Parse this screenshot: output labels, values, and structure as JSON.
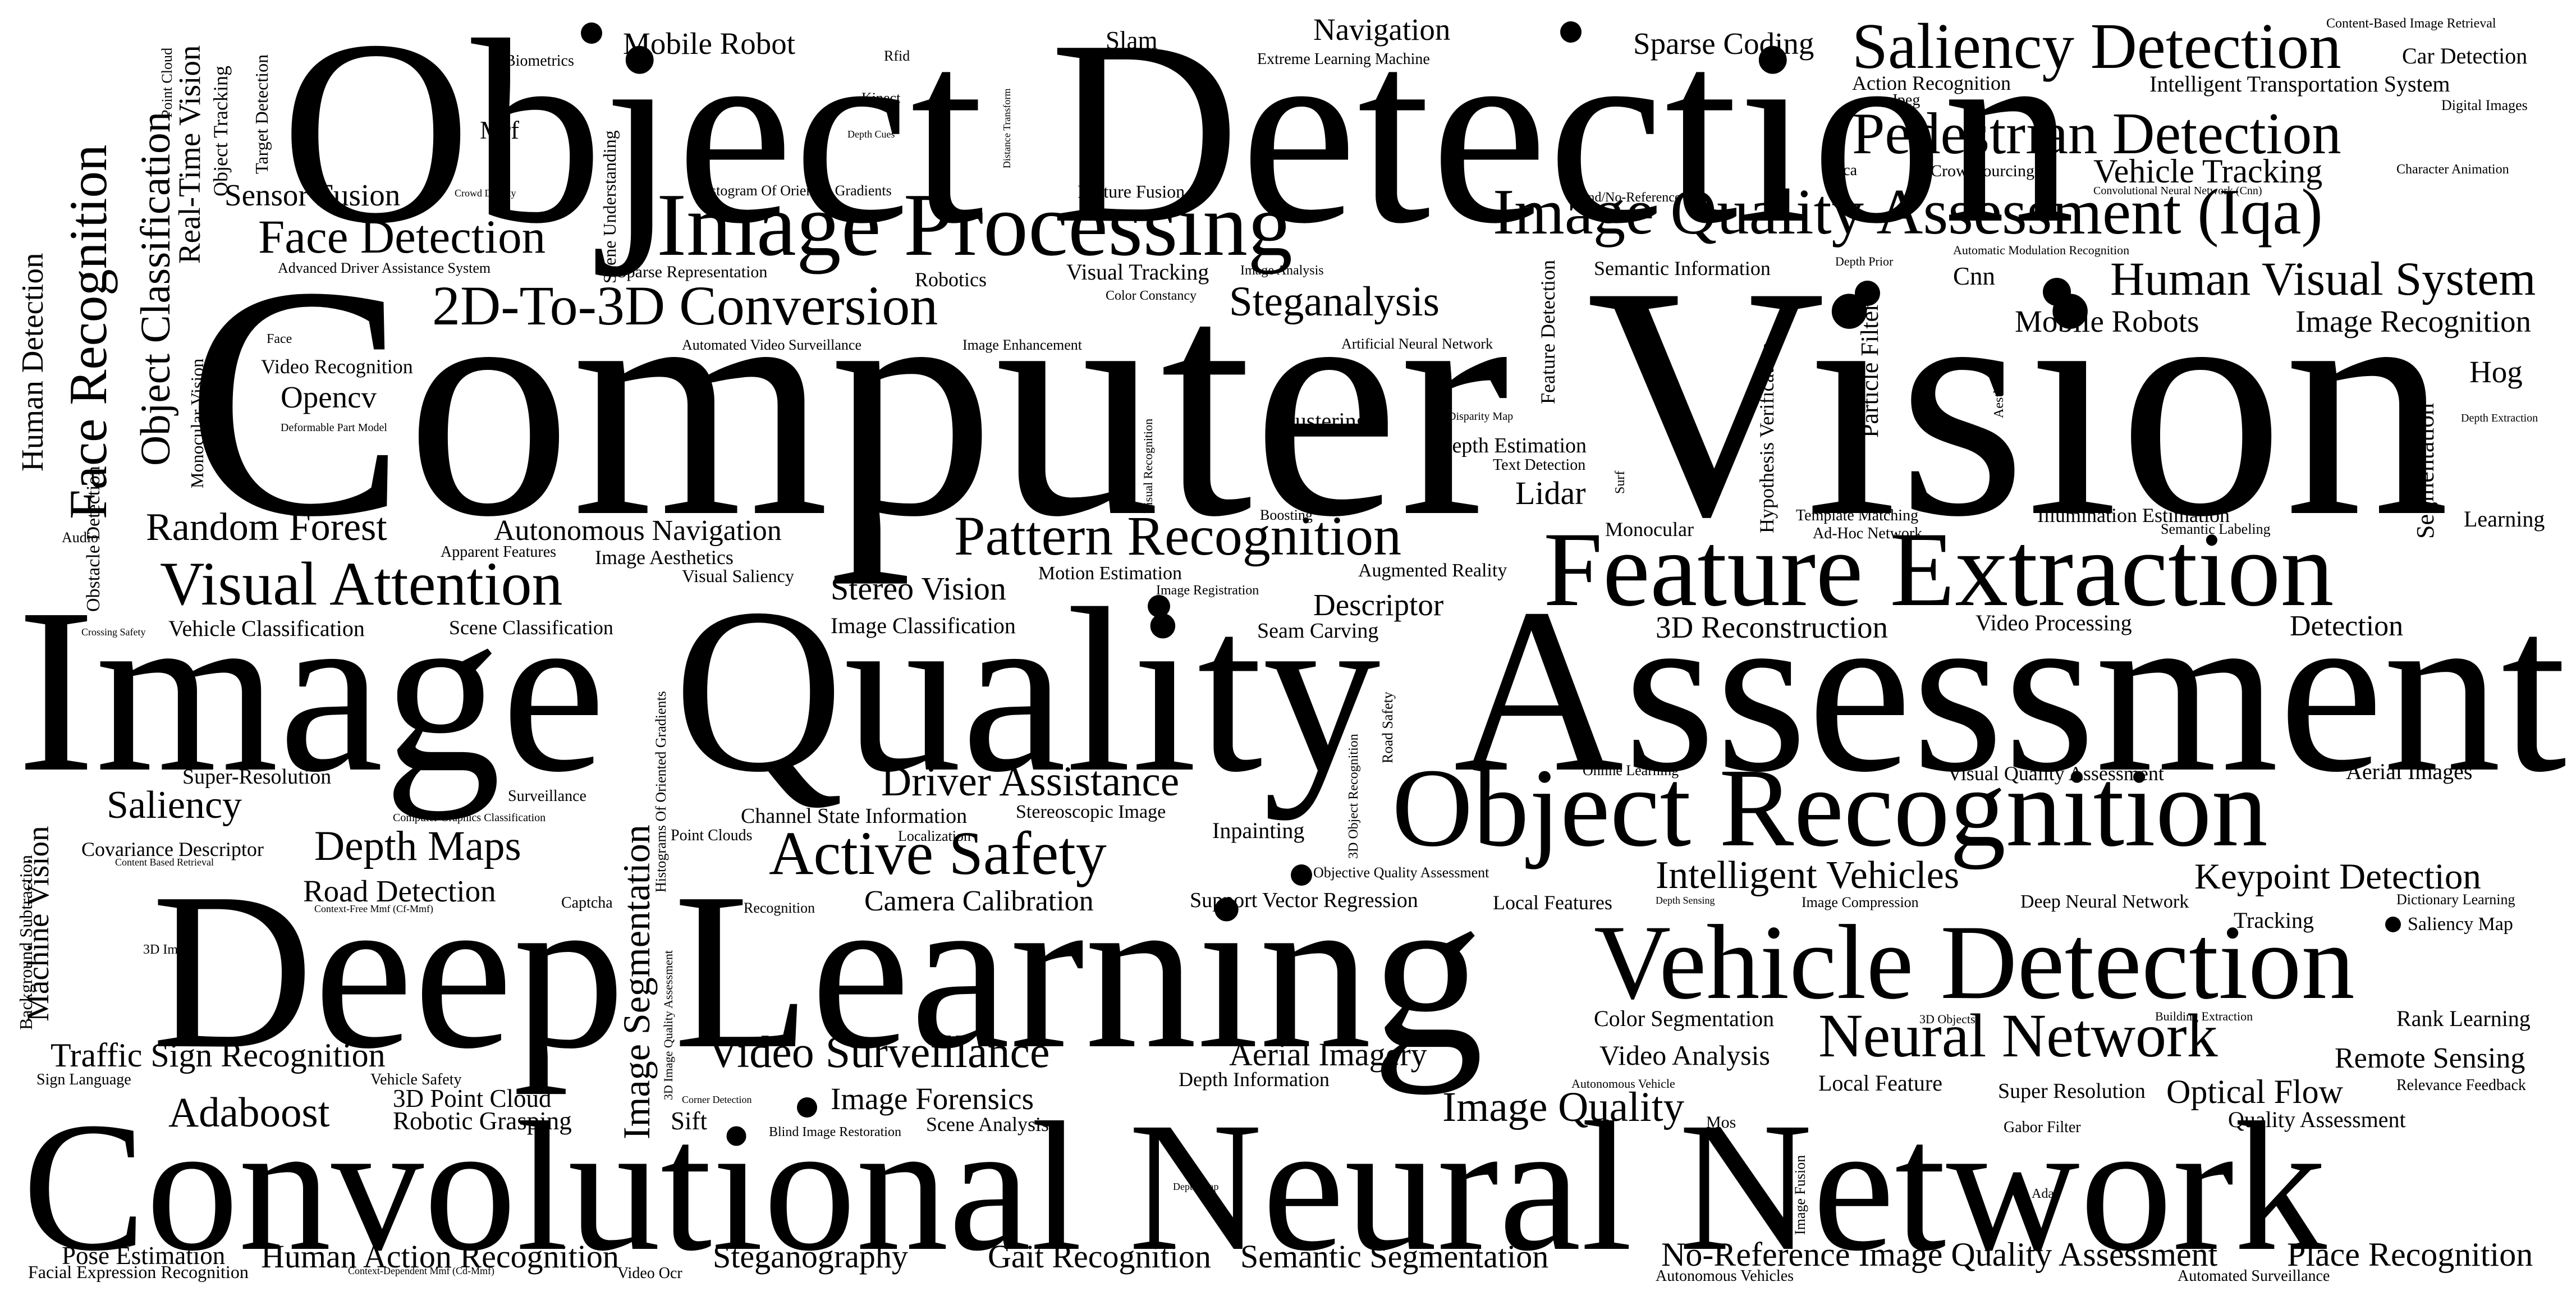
{
  "cloud": {
    "words": [
      "Computer Vision",
      "Object Detection",
      "Image",
      "Quality",
      "Assessment",
      "Deep",
      "Learning",
      "Convolutional Neural Network",
      "Feature Extraction",
      "Object Recognition",
      "Vehicle Detection",
      "Image Processing",
      "Image Quality Assessment (Iqa)",
      "Saliency Detection",
      "Pedestrian Detection",
      "Human Visual System",
      "Visual Attention",
      "Active Safety",
      "Neural Network",
      "Pattern Recognition",
      "2D-To-3D Conversion",
      "Face Recognition",
      "Object Classification",
      "Face Detection",
      "Random Forest",
      "Driver Assistance",
      "Depth Maps",
      "Video Surveillance",
      "Traffic Sign Recognition",
      "Adaboost",
      "Image Quality",
      "Mobile Robot",
      "Navigation",
      "Sparse Coding",
      "Steganalysis",
      "Intelligent Vehicles",
      "Keypoint Detection",
      "Optical Flow",
      "Saliency",
      "Stereo Vision",
      "Autonomous Navigation",
      "3D Reconstruction",
      "Mobile Robots",
      "Image Recognition",
      "Vehicle Tracking",
      "Place Recognition",
      "No-Reference Image Quality Assessment",
      "Semantic Segmentation",
      "Gait Recognition",
      "Steganography",
      "Human Action Recognition",
      "Remote Sensing",
      "Image Forensics",
      "Aerial Imagery",
      "Video Analysis",
      "Camera Calibration",
      "Road Detection",
      "Sensor Fusion",
      "Opencv",
      "Descriptor",
      "Detection",
      "Hog",
      "Lidar",
      "Video Processing",
      "Image Segmentation",
      "Machine Vision",
      "Human Detection",
      "Real-Time Vision",
      "Pose Estimation",
      "Rank Learning",
      "Tracking",
      "Color Segmentation",
      "Local Feature",
      "Quality Assessment",
      "Super Resolution",
      "Robotic Grasping",
      "3D Point Cloud",
      "Sift",
      "Mrf",
      "Cnn",
      "Slam",
      "Biometrics",
      "Car Detection",
      "Intelligent Transportation System",
      "Action Recognition",
      "Content-Based Image Retrieval",
      "Digital Images",
      "Character Animation",
      "Jpeg",
      "Kpca",
      "Crowdsourcing",
      "Convolutional Neural Network (Cnn)",
      "Automatic Modulation Recognition",
      "Semantic Information",
      "Depth Prior",
      "Robotics",
      "Visual Tracking",
      "Image Analysis",
      "Color Constancy",
      "Image Enhancement",
      "Automated Video Surveillance",
      "Artificial Neural Network",
      "Advanced Driver Assistance System",
      "Sparse Representation",
      "Histogram Of Oriented Gradients",
      "Feature Fusion",
      "Extreme Learning Machine",
      "Rfid",
      "Kinect",
      "Depth Cues",
      "Crowd Density",
      "Blind/No-Reference (Nr)",
      "Face",
      "Video Recognition",
      "Deformable Part Model",
      "Clustering",
      "Disparity Map",
      "Depth Estimation",
      "Text Detection",
      "Template Matching",
      "Ad-Hoc Network",
      "Illumination Estimation",
      "Semantic Labeling",
      "Learning",
      "Depth Extraction",
      "Monocular",
      "Augmented Reality",
      "Motion Estimation",
      "Image Registration",
      "Apparent Features",
      "Image Aesthetics",
      "Visual Saliency",
      "Audio",
      "Crossing Safety",
      "Vehicle Classification",
      "Scene Classification",
      "Image Classification",
      "Seam Carving",
      "Boosting",
      "Super-Resolution",
      "Surveillance",
      "Computer Graphics Classification",
      "Covariance Descriptor",
      "Content Based Retrieval",
      "Context-Free Mmf (Cf-Mmf)",
      "Captcha",
      "Channel State Information",
      "Stereoscopic Image",
      "Point Clouds",
      "Localization",
      "Inpainting",
      "Objective Quality Assessment",
      "Support Vector Regression",
      "Local Features",
      "Depth Sensing",
      "Image Compression",
      "Deep Neural Network",
      "Dictionary Learning",
      "Saliency Map",
      "Visual Quality Assessment",
      "Aerial Images",
      "Online Learning",
      "Recognition",
      "3D Image",
      "Sign Language",
      "Vehicle Safety",
      "Corner Detection",
      "Blind Image Restoration",
      "Scene Analysis",
      "Depth Information",
      "Autonomous Vehicle",
      "Mos",
      "Gabor Filter",
      "Relevance Feedback",
      "Building Extraction",
      "3D Objects",
      "Depth Map",
      "Adas",
      "Facial Expression Recognition",
      "Context-Dependent Mmf (Cd-Mmf)",
      "Video Ocr",
      "Autonomous Vehicles",
      "Automated Surveillance",
      "Point Cloud",
      "Object Tracking",
      "Target Detection",
      "Scene Understanding",
      "Distance Transform",
      "Monocular Vision",
      "Obstacle Detection",
      "Particle Filter",
      "Feature Detection",
      "Hypothesis Verification",
      "Aesthetics",
      "Segmentation",
      "Surf",
      "Visual Recognition",
      "3D Image Quality Assessment",
      "Histograms Of Oriented Gradients",
      "Background Subtraction",
      "Road Safety",
      "3D Object Recognition",
      "Image Fusion"
    ]
  }
}
